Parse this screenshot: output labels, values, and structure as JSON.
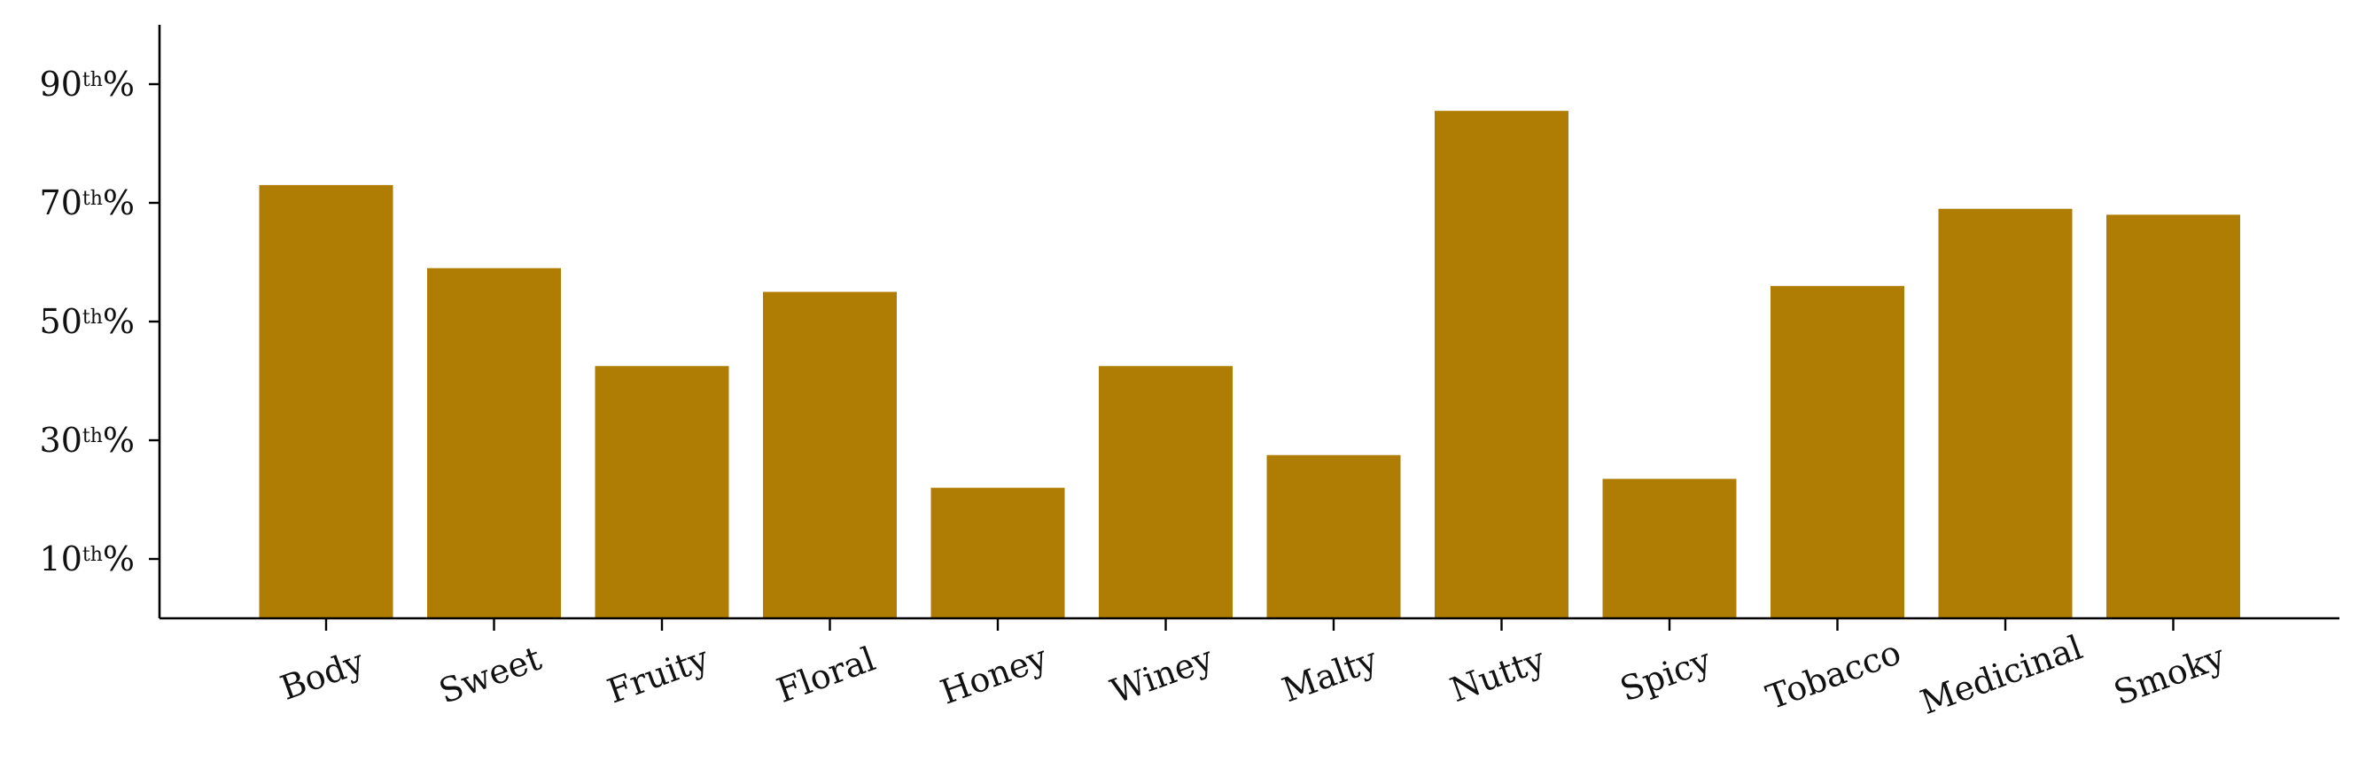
{
  "chart_data": {
    "type": "bar",
    "title": "",
    "xlabel": "",
    "ylabel": "",
    "ylim": [
      0,
      100
    ],
    "bar_color": "#B07D04",
    "categories": [
      "Body",
      "Sweet",
      "Fruity",
      "Floral",
      "Honey",
      "Winey",
      "Malty",
      "Nutty",
      "Spicy",
      "Tobacco",
      "Medicinal",
      "Smoky"
    ],
    "values": [
      73,
      59,
      42.5,
      55,
      22,
      42.5,
      27.5,
      85.5,
      23.5,
      56,
      69,
      68
    ],
    "y_ticks": [
      {
        "value": 10,
        "number": "10",
        "suffix": "th",
        "percent": "%"
      },
      {
        "value": 30,
        "number": "30",
        "suffix": "th",
        "percent": "%"
      },
      {
        "value": 50,
        "number": "50",
        "suffix": "th",
        "percent": "%"
      },
      {
        "value": 70,
        "number": "70",
        "suffix": "th",
        "percent": "%"
      },
      {
        "value": 90,
        "number": "90",
        "suffix": "th",
        "percent": "%"
      }
    ],
    "x_tick_rotation_deg": -20,
    "grid": false,
    "legend": "none"
  }
}
